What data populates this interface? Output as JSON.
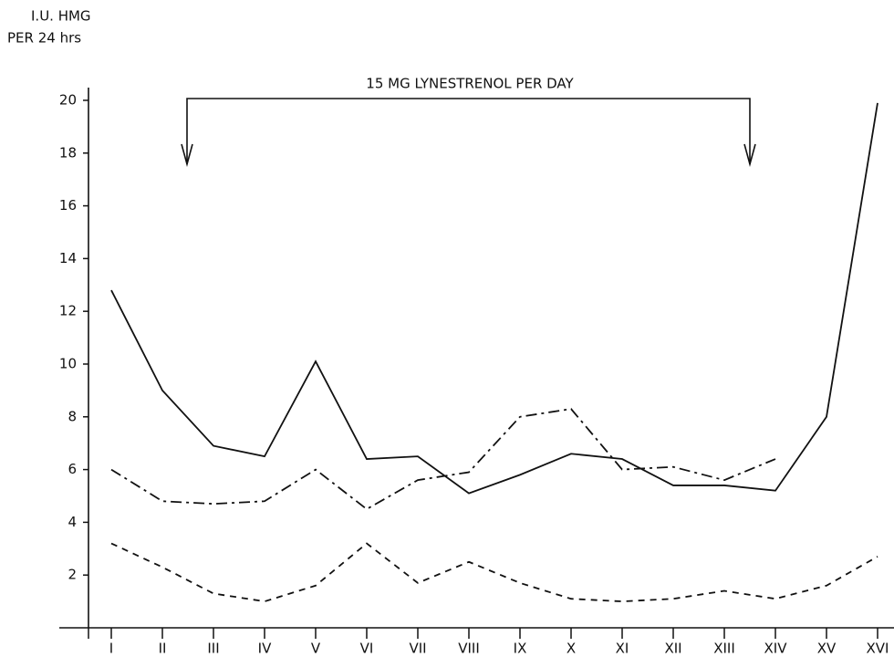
{
  "chart_data": {
    "type": "line",
    "ylabel": [
      "I.U. HMG",
      "PER 24 hrs"
    ],
    "annotation": "15 MG LYNESTRENOL PER DAY",
    "categories": [
      "I",
      "II",
      "III",
      "IV",
      "V",
      "VI",
      "VII",
      "VIII",
      "IX",
      "X",
      "XI",
      "XII",
      "XIII",
      "XIV",
      "XV",
      "XVI"
    ],
    "ylim": [
      0,
      20.5
    ],
    "yticks": [
      2,
      4,
      6,
      8,
      10,
      12,
      14,
      16,
      18,
      20
    ],
    "series": [
      {
        "color": "#111111",
        "dash": "solid",
        "values": [
          12.8,
          9.0,
          6.9,
          6.5,
          10.1,
          6.4,
          6.5,
          5.1,
          5.8,
          6.6,
          6.4,
          5.4,
          5.4,
          5.2,
          8.0,
          19.9
        ]
      },
      {
        "color": "#111111",
        "dash": "dashdot",
        "values": [
          6.0,
          4.8,
          4.7,
          4.8,
          6.0,
          4.5,
          5.6,
          5.9,
          8.0,
          8.3,
          6.0,
          6.1,
          5.6,
          6.4,
          null,
          null
        ]
      },
      {
        "color": "#111111",
        "dash": "dashed",
        "values": [
          3.2,
          2.3,
          1.3,
          1.0,
          1.6,
          3.2,
          1.7,
          2.5,
          1.7,
          1.1,
          1.0,
          1.1,
          1.4,
          1.1,
          1.6,
          2.7
        ]
      }
    ]
  }
}
